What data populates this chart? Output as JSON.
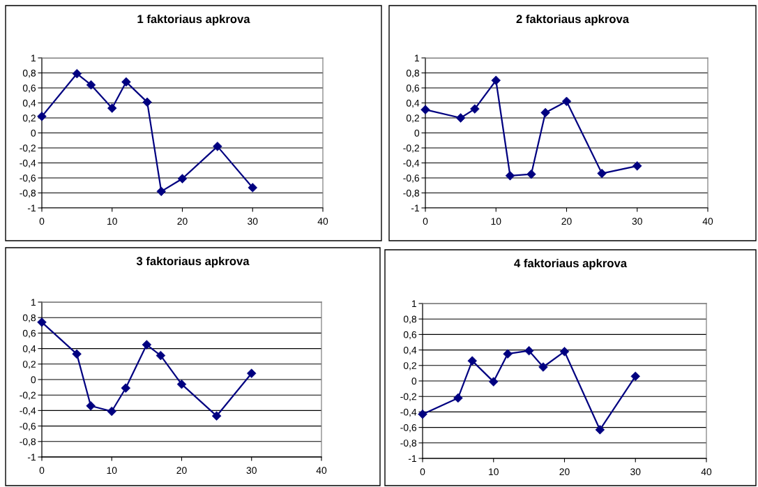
{
  "chart_data": [
    {
      "type": "line",
      "title": "1 faktoriaus apkrova",
      "x": [
        0,
        5,
        7,
        10,
        12,
        15,
        17,
        20,
        25,
        30
      ],
      "series": [
        {
          "color": "#000080",
          "values": [
            0.22,
            0.79,
            0.64,
            0.33,
            0.68,
            0.41,
            -0.78,
            -0.61,
            -0.18,
            -0.73
          ]
        }
      ],
      "xlim": [
        0,
        40
      ],
      "xticks": [
        0,
        10,
        20,
        30,
        40
      ],
      "ylim": [
        -1,
        1
      ],
      "yticks": [
        -1,
        {
          "value": -0.8,
          "label": "-0,8"
        },
        {
          "value": -0.6,
          "label": "-0,6"
        },
        {
          "value": -0.4,
          "label": "-0,4"
        },
        {
          "value": -0.2,
          "label": "-0,2"
        },
        0,
        {
          "value": 0.2,
          "label": "0,2"
        },
        {
          "value": 0.4,
          "label": "0,4"
        },
        {
          "value": 0.6,
          "label": "0,6"
        },
        {
          "value": 0.8,
          "label": "0,8"
        },
        1
      ],
      "grid": "y",
      "legend": false,
      "marker": "diamond",
      "line_style": "solid"
    },
    {
      "type": "line",
      "title": "2 faktoriaus apkrova",
      "x": [
        0,
        5,
        7,
        10,
        12,
        15,
        17,
        20,
        25,
        30
      ],
      "series": [
        {
          "color": "#000080",
          "values": [
            0.31,
            0.2,
            0.32,
            0.7,
            -0.57,
            -0.55,
            0.27,
            0.42,
            -0.54,
            -0.44
          ]
        }
      ],
      "xlim": [
        0,
        40
      ],
      "xticks": [
        0,
        10,
        20,
        30,
        40
      ],
      "ylim": [
        -1,
        1
      ],
      "yticks": [
        -1,
        {
          "value": -0.8,
          "label": "-0,8"
        },
        {
          "value": -0.6,
          "label": "-0,6"
        },
        {
          "value": -0.4,
          "label": "-0,4"
        },
        {
          "value": -0.2,
          "label": "-0,2"
        },
        0,
        {
          "value": 0.2,
          "label": "0,2"
        },
        {
          "value": 0.4,
          "label": "0,4"
        },
        {
          "value": 0.6,
          "label": "0,6"
        },
        {
          "value": 0.8,
          "label": "0,8"
        },
        1
      ],
      "grid": "y",
      "legend": false,
      "marker": "diamond",
      "line_style": "solid"
    },
    {
      "type": "line",
      "title": "3 faktoriaus apkrova",
      "x": [
        0,
        5,
        7,
        10,
        12,
        15,
        17,
        20,
        25,
        30
      ],
      "series": [
        {
          "color": "#000080",
          "values": [
            0.74,
            0.33,
            -0.34,
            -0.41,
            -0.11,
            0.45,
            0.31,
            -0.06,
            -0.47,
            0.08
          ]
        }
      ],
      "xlim": [
        0,
        40
      ],
      "xticks": [
        0,
        10,
        20,
        30,
        40
      ],
      "ylim": [
        -1,
        1
      ],
      "yticks": [
        -1,
        {
          "value": -0.8,
          "label": "-0,8"
        },
        {
          "value": -0.6,
          "label": "-0,6"
        },
        {
          "value": -0.4,
          "label": "-0,4"
        },
        {
          "value": -0.2,
          "label": "-0,2"
        },
        0,
        {
          "value": 0.2,
          "label": "0,2"
        },
        {
          "value": 0.4,
          "label": "0,4"
        },
        {
          "value": 0.6,
          "label": "0,6"
        },
        {
          "value": 0.8,
          "label": "0,8"
        },
        1
      ],
      "grid": "y",
      "legend": false,
      "marker": "diamond",
      "line_style": "solid"
    },
    {
      "type": "line",
      "title": "4 faktoriaus apkrova",
      "x": [
        0,
        5,
        7,
        10,
        12,
        15,
        17,
        20,
        25,
        30
      ],
      "series": [
        {
          "color": "#000080",
          "values": [
            -0.43,
            -0.22,
            0.26,
            -0.01,
            0.35,
            0.39,
            0.18,
            0.38,
            -0.63,
            0.06
          ]
        }
      ],
      "xlim": [
        0,
        40
      ],
      "xticks": [
        0,
        10,
        20,
        30,
        40
      ],
      "ylim": [
        -1,
        1
      ],
      "yticks": [
        -1,
        {
          "value": -0.8,
          "label": "-0,8"
        },
        {
          "value": -0.6,
          "label": "-0,6"
        },
        {
          "value": -0.4,
          "label": "-0,4"
        },
        {
          "value": -0.2,
          "label": "-0,2"
        },
        0,
        {
          "value": 0.2,
          "label": "0,2"
        },
        {
          "value": 0.4,
          "label": "0,4"
        },
        {
          "value": 0.6,
          "label": "0,6"
        },
        {
          "value": 0.8,
          "label": "0,8"
        },
        1
      ],
      "grid": "y",
      "legend": false,
      "marker": "diamond",
      "line_style": "solid"
    }
  ]
}
